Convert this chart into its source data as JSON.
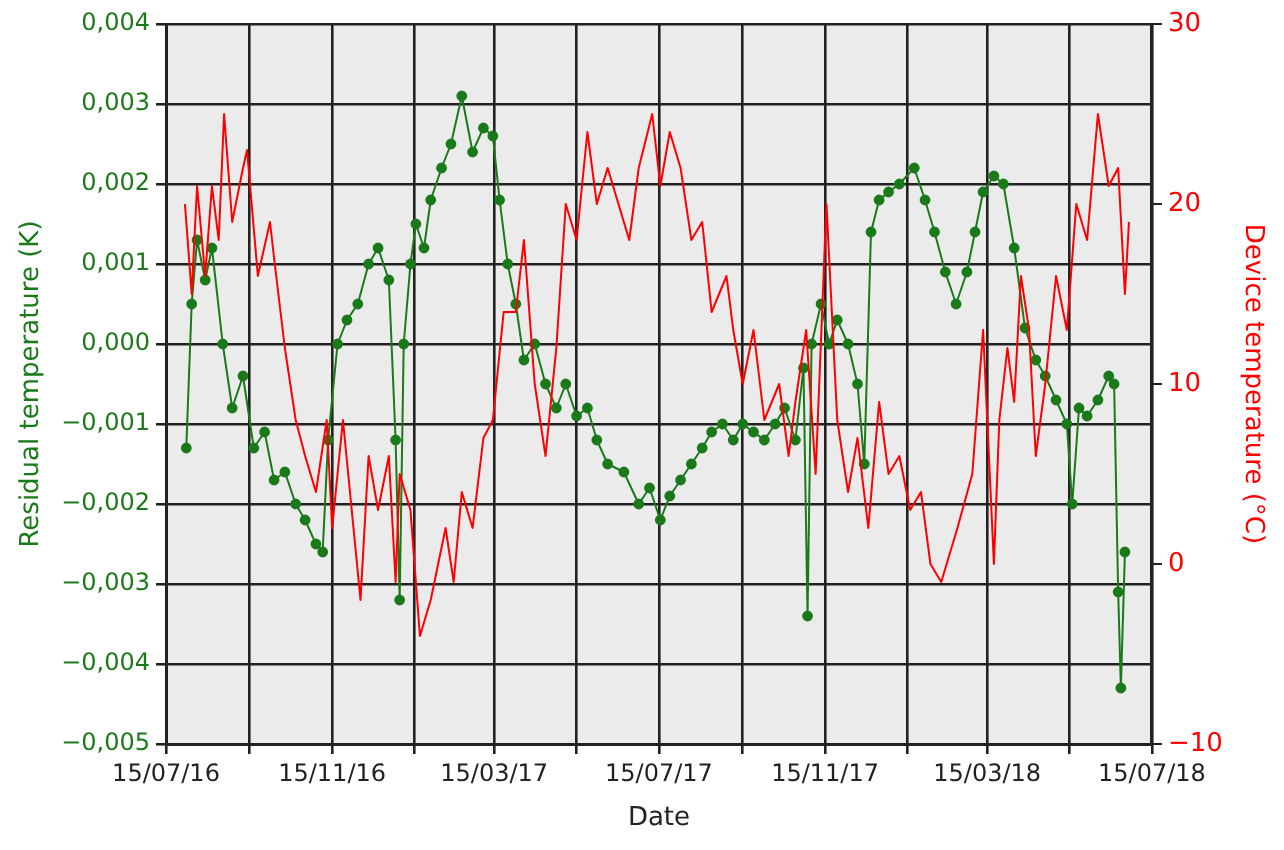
{
  "chart_data": {
    "type": "line",
    "xlabel": "Date",
    "ylabel": "Residual temperature (K)",
    "y2label": "Device temperature (°C)",
    "xlim": [
      "2016-07-15",
      "2018-07-15"
    ],
    "xticks": [
      {
        "value": "2016-07-15",
        "label": "15/07/16"
      },
      {
        "value": "2016-09-15",
        "label": null
      },
      {
        "value": "2016-11-15",
        "label": "15/11/16"
      },
      {
        "value": "2017-01-15",
        "label": null
      },
      {
        "value": "2017-03-15",
        "label": "15/03/17"
      },
      {
        "value": "2017-05-15",
        "label": null
      },
      {
        "value": "2017-07-15",
        "label": "15/07/17"
      },
      {
        "value": "2017-09-15",
        "label": null
      },
      {
        "value": "2017-11-15",
        "label": "15/11/17"
      },
      {
        "value": "2018-01-15",
        "label": null
      },
      {
        "value": "2018-03-15",
        "label": "15/03/18"
      },
      {
        "value": "2018-05-15",
        "label": null
      },
      {
        "value": "2018-07-15",
        "label": "15/07/18"
      }
    ],
    "ylim": [
      -0.005,
      0.004
    ],
    "yticks": [
      {
        "value": -0.005,
        "label": "−0,005"
      },
      {
        "value": -0.004,
        "label": "−0,004"
      },
      {
        "value": -0.003,
        "label": "−0,003"
      },
      {
        "value": -0.002,
        "label": "−0,002"
      },
      {
        "value": -0.001,
        "label": "−0,001"
      },
      {
        "value": 0,
        "label": "0,000"
      },
      {
        "value": 0.001,
        "label": "0,001"
      },
      {
        "value": 0.002,
        "label": "0,002"
      },
      {
        "value": 0.003,
        "label": "0,003"
      },
      {
        "value": 0.004,
        "label": "0,004"
      }
    ],
    "y2lim": [
      -10,
      30
    ],
    "y2ticks": [
      {
        "value": -10,
        "label": "−10"
      },
      0,
      10,
      20,
      30
    ],
    "grid": true,
    "legend": false,
    "series": [
      {
        "color": "#ff0000",
        "axis": "y2",
        "marker": "none",
        "x": [
          "2016-07-29",
          "2016-08-03",
          "2016-08-07",
          "2016-08-13",
          "2016-08-18",
          "2016-08-23",
          "2016-08-27",
          "2016-09-02",
          "2016-09-10",
          "2016-09-13",
          "2016-09-21",
          "2016-09-30",
          "2016-10-03",
          "2016-10-11",
          "2016-10-19",
          "2016-10-26",
          "2016-11-03",
          "2016-11-11",
          "2016-11-15",
          "2016-11-23",
          "2016-12-06",
          "2016-12-12",
          "2016-12-19",
          "2016-12-27",
          "2017-01-01",
          "2017-01-04",
          "2017-01-12",
          "2017-01-19",
          "2017-01-27",
          "2017-02-07",
          "2017-02-13",
          "2017-02-19",
          "2017-02-27",
          "2017-03-07",
          "2017-03-14",
          "2017-03-22",
          "2017-03-31",
          "2017-04-06",
          "2017-04-14",
          "2017-04-22",
          "2017-04-30",
          "2017-05-07",
          "2017-05-15",
          "2017-05-23",
          "2017-05-30",
          "2017-06-07",
          "2017-06-23",
          "2017-06-30",
          "2017-07-10",
          "2017-07-16",
          "2017-07-23",
          "2017-07-31",
          "2017-08-08",
          "2017-08-16",
          "2017-08-23",
          "2017-09-03",
          "2017-09-08",
          "2017-09-15",
          "2017-09-23",
          "2017-10-01",
          "2017-10-12",
          "2017-10-19",
          "2017-10-24",
          "2017-11-01",
          "2017-11-08",
          "2017-11-16",
          "2017-11-24",
          "2017-12-02",
          "2017-12-09",
          "2017-12-17",
          "2017-12-25",
          "2018-01-01",
          "2018-01-09",
          "2018-01-17",
          "2018-01-25",
          "2018-02-01",
          "2018-02-09",
          "2018-02-21",
          "2018-03-04",
          "2018-03-12",
          "2018-03-20",
          "2018-03-24",
          "2018-03-30",
          "2018-04-04",
          "2018-04-09",
          "2018-04-15",
          "2018-04-20",
          "2018-04-27",
          "2018-05-05",
          "2018-05-13",
          "2018-05-20",
          "2018-05-28",
          "2018-06-05",
          "2018-06-13",
          "2018-06-20",
          "2018-06-25",
          "2018-06-28"
        ],
        "values": [
          20,
          15,
          21,
          16,
          21,
          18,
          25,
          19,
          22,
          23,
          16,
          19,
          17,
          12,
          8,
          6,
          4,
          8,
          2,
          8,
          -2,
          6,
          3,
          6,
          -1,
          5,
          3,
          -4,
          -2,
          2,
          -1,
          4,
          2,
          7,
          8,
          14,
          14,
          18,
          10,
          6,
          12,
          20,
          18,
          24,
          20,
          22,
          18,
          22,
          25,
          21,
          24,
          22,
          18,
          19,
          14,
          16,
          13,
          10,
          13,
          8,
          10,
          6,
          9,
          13,
          5,
          20,
          8,
          4,
          7,
          2,
          9,
          5,
          6,
          3,
          4,
          0,
          -1,
          2,
          5,
          13,
          0,
          8,
          12,
          9,
          16,
          13,
          6,
          10,
          16,
          13,
          20,
          18,
          25,
          21,
          22,
          15,
          19
        ]
      },
      {
        "color": "#1a7a1a",
        "axis": "y",
        "marker": "circle",
        "x": [
          "2016-07-30",
          "2016-08-03",
          "2016-08-07",
          "2016-08-13",
          "2016-08-18",
          "2016-08-26",
          "2016-09-02",
          "2016-09-10",
          "2016-09-18",
          "2016-09-26",
          "2016-10-03",
          "2016-10-11",
          "2016-10-19",
          "2016-10-26",
          "2016-11-03",
          "2016-11-08",
          "2016-11-12",
          "2016-11-19",
          "2016-11-26",
          "2016-12-04",
          "2016-12-12",
          "2016-12-19",
          "2016-12-27",
          "2017-01-01",
          "2017-01-04",
          "2017-01-07",
          "2017-01-12",
          "2017-01-16",
          "2017-01-22",
          "2017-01-27",
          "2017-02-04",
          "2017-02-11",
          "2017-02-19",
          "2017-02-27",
          "2017-03-07",
          "2017-03-14",
          "2017-03-19",
          "2017-03-25",
          "2017-03-31",
          "2017-04-06",
          "2017-04-14",
          "2017-04-22",
          "2017-04-30",
          "2017-05-07",
          "2017-05-15",
          "2017-05-23",
          "2017-05-30",
          "2017-06-07",
          "2017-06-19",
          "2017-06-30",
          "2017-07-08",
          "2017-07-16",
          "2017-07-23",
          "2017-07-31",
          "2017-08-08",
          "2017-08-16",
          "2017-08-23",
          "2017-08-31",
          "2017-09-08",
          "2017-09-15",
          "2017-09-23",
          "2017-10-01",
          "2017-10-09",
          "2017-10-16",
          "2017-10-24",
          "2017-10-30",
          "2017-11-02",
          "2017-11-05",
          "2017-11-12",
          "2017-11-18",
          "2017-11-24",
          "2017-12-02",
          "2017-12-09",
          "2017-12-14",
          "2017-12-19",
          "2017-12-25",
          "2018-01-01",
          "2018-01-09",
          "2018-01-20",
          "2018-01-28",
          "2018-02-04",
          "2018-02-12",
          "2018-02-20",
          "2018-02-28",
          "2018-03-06",
          "2018-03-12",
          "2018-03-20",
          "2018-03-27",
          "2018-04-04",
          "2018-04-12",
          "2018-04-20",
          "2018-04-27",
          "2018-05-05",
          "2018-05-13",
          "2018-05-17",
          "2018-05-22",
          "2018-05-28",
          "2018-06-05",
          "2018-06-13",
          "2018-06-17",
          "2018-06-20",
          "2018-06-22",
          "2018-06-25"
        ],
        "values": [
          -0.0013,
          0.0005,
          0.0013,
          0.0008,
          0.0012,
          0.0,
          -0.0008,
          -0.0004,
          -0.0013,
          -0.0011,
          -0.0017,
          -0.0016,
          -0.002,
          -0.0022,
          -0.0025,
          -0.0026,
          -0.0012,
          0.0,
          0.0003,
          0.0005,
          0.001,
          0.0012,
          0.0008,
          -0.0012,
          -0.0032,
          0.0,
          0.001,
          0.0015,
          0.0012,
          0.0018,
          0.0022,
          0.0025,
          0.0031,
          0.0024,
          0.0027,
          0.0026,
          0.0018,
          0.001,
          0.0005,
          -0.0002,
          0.0,
          -0.0005,
          -0.0008,
          -0.0005,
          -0.0009,
          -0.0008,
          -0.0012,
          -0.0015,
          -0.0016,
          -0.002,
          -0.0018,
          -0.0022,
          -0.0019,
          -0.0017,
          -0.0015,
          -0.0013,
          -0.0011,
          -0.001,
          -0.0012,
          -0.001,
          -0.0011,
          -0.0012,
          -0.001,
          -0.0008,
          -0.0012,
          -0.0003,
          -0.0034,
          0.0,
          0.0005,
          0.0,
          0.0003,
          0.0,
          -0.0005,
          -0.0015,
          0.0014,
          0.0018,
          0.0019,
          0.002,
          0.0022,
          0.0018,
          0.0014,
          0.0009,
          0.0005,
          0.0009,
          0.0014,
          0.0019,
          0.0021,
          0.002,
          0.0012,
          0.0002,
          -0.0002,
          -0.0004,
          -0.0007,
          -0.001,
          -0.002,
          -0.0008,
          -0.0009,
          -0.0007,
          -0.0004,
          -0.0005,
          -0.0031,
          -0.0043,
          -0.0026
        ]
      }
    ]
  }
}
